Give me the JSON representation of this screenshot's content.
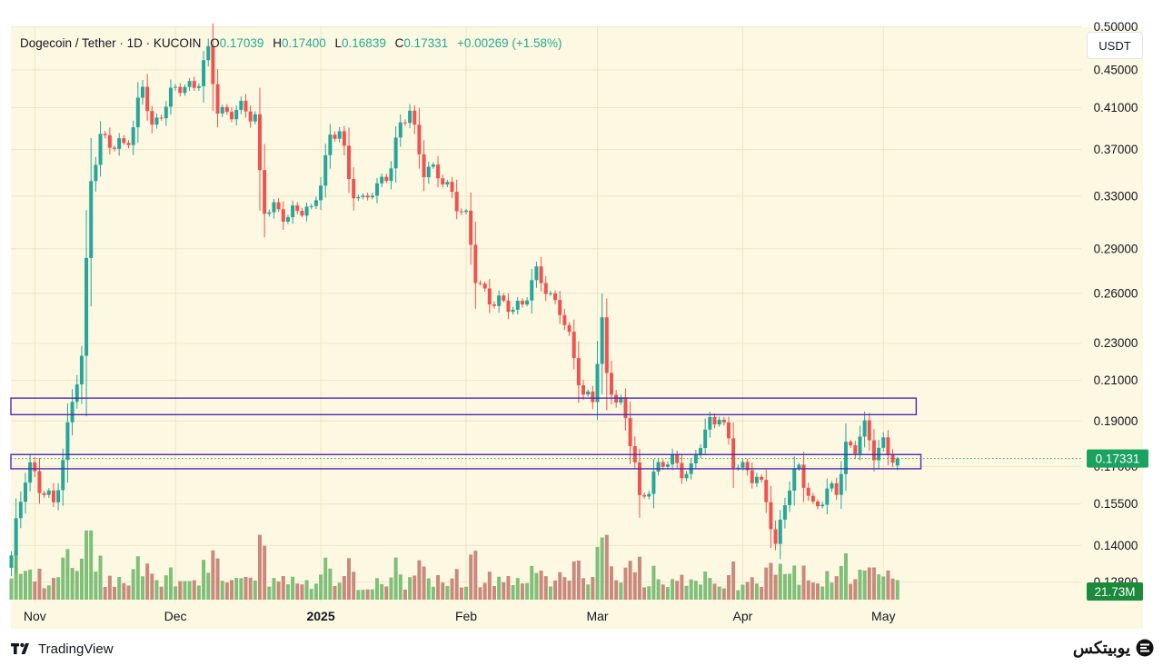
{
  "legend": {
    "symbol": "Dogecoin / Tether · 1D · KUCOIN",
    "open_label": "O",
    "open": "0.17039",
    "high_label": "H",
    "high": "0.17400",
    "low_label": "L",
    "low": "0.16839",
    "close_label": "C",
    "close": "0.17331",
    "change": "+0.00269 (+1.58%)"
  },
  "currency_button": "USDT",
  "footer": {
    "brand": "TradingView",
    "watermark": "یوبیتکس"
  },
  "colors": {
    "background": "#fdf8e1",
    "up": "#26a69a",
    "down": "#ef5350",
    "volume_up": "#7fbf7a",
    "volume_down": "#c98a7e",
    "zone": "#4b2bb8",
    "last_price_label": "#1aa260",
    "volume_label": "#1b8a3a"
  },
  "chart_data": {
    "type": "candlestick",
    "title": "Dogecoin / Tether · 1D · KUCOIN",
    "y_scale": "log",
    "ylim": [
      0.127,
      0.52
    ],
    "y_ticks": [
      "0.50000",
      "0.45000",
      "0.41000",
      "0.37000",
      "0.33000",
      "0.29000",
      "0.26000",
      "0.23000",
      "0.21000",
      "0.19000",
      "0.17000",
      "0.15500",
      "0.14000",
      "0.12800"
    ],
    "x_ticks": [
      {
        "label": "Nov",
        "date": "2024-11-01"
      },
      {
        "label": "Dec",
        "date": "2024-12-01"
      },
      {
        "label": "2025",
        "date": "2025-01-01"
      },
      {
        "label": "Feb",
        "date": "2025-02-01"
      },
      {
        "label": "Mar",
        "date": "2025-03-01"
      },
      {
        "label": "Apr",
        "date": "2025-04-01"
      },
      {
        "label": "May",
        "date": "2025-05-01"
      }
    ],
    "first_date": "2024-10-27",
    "close_keypoints": [
      [
        "2024-10-27",
        0.135
      ],
      [
        "2024-10-30",
        0.168
      ],
      [
        "2024-10-31",
        0.172
      ],
      [
        "2024-11-02",
        0.16
      ],
      [
        "2024-11-05",
        0.155
      ],
      [
        "2024-11-07",
        0.175
      ],
      [
        "2024-11-09",
        0.198
      ],
      [
        "2024-11-11",
        0.22
      ],
      [
        "2024-11-12",
        0.28
      ],
      [
        "2024-11-13",
        0.35
      ],
      [
        "2024-11-15",
        0.38
      ],
      [
        "2024-11-18",
        0.37
      ],
      [
        "2024-11-22",
        0.39
      ],
      [
        "2024-11-24",
        0.43
      ],
      [
        "2024-11-26",
        0.39
      ],
      [
        "2024-11-28",
        0.41
      ],
      [
        "2024-12-02",
        0.43
      ],
      [
        "2024-12-06",
        0.44
      ],
      [
        "2024-12-08",
        0.465
      ],
      [
        "2024-12-10",
        0.41
      ],
      [
        "2024-12-14",
        0.405
      ],
      [
        "2024-12-18",
        0.405
      ],
      [
        "2024-12-19",
        0.35
      ],
      [
        "2024-12-20",
        0.32
      ],
      [
        "2024-12-23",
        0.315
      ],
      [
        "2024-12-26",
        0.32
      ],
      [
        "2024-12-30",
        0.315
      ],
      [
        "2025-01-03",
        0.38
      ],
      [
        "2025-01-05",
        0.385
      ],
      [
        "2025-01-07",
        0.345
      ],
      [
        "2025-01-10",
        0.325
      ],
      [
        "2025-01-13",
        0.335
      ],
      [
        "2025-01-16",
        0.36
      ],
      [
        "2025-01-18",
        0.39
      ],
      [
        "2025-01-20",
        0.405
      ],
      [
        "2025-01-23",
        0.355
      ],
      [
        "2025-01-26",
        0.345
      ],
      [
        "2025-01-29",
        0.335
      ],
      [
        "2025-02-01",
        0.31
      ],
      [
        "2025-02-03",
        0.27
      ],
      [
        "2025-02-06",
        0.258
      ],
      [
        "2025-02-09",
        0.25
      ],
      [
        "2025-02-13",
        0.255
      ],
      [
        "2025-02-16",
        0.27
      ],
      [
        "2025-02-18",
        0.265
      ],
      [
        "2025-02-21",
        0.25
      ],
      [
        "2025-02-24",
        0.22
      ],
      [
        "2025-02-26",
        0.205
      ],
      [
        "2025-02-28",
        0.2
      ],
      [
        "2025-03-02",
        0.24
      ],
      [
        "2025-03-03",
        0.21
      ],
      [
        "2025-03-06",
        0.2
      ],
      [
        "2025-03-09",
        0.17
      ],
      [
        "2025-03-10",
        0.155
      ],
      [
        "2025-03-13",
        0.168
      ],
      [
        "2025-03-17",
        0.172
      ],
      [
        "2025-03-21",
        0.168
      ],
      [
        "2025-03-25",
        0.19
      ],
      [
        "2025-03-27",
        0.195
      ],
      [
        "2025-03-30",
        0.17
      ],
      [
        "2025-04-02",
        0.17
      ],
      [
        "2025-04-04",
        0.165
      ],
      [
        "2025-04-06",
        0.155
      ],
      [
        "2025-04-08",
        0.14
      ],
      [
        "2025-04-10",
        0.158
      ],
      [
        "2025-04-13",
        0.168
      ],
      [
        "2025-04-16",
        0.155
      ],
      [
        "2025-04-19",
        0.158
      ],
      [
        "2025-04-21",
        0.16
      ],
      [
        "2025-04-23",
        0.18
      ],
      [
        "2025-04-25",
        0.178
      ],
      [
        "2025-04-27",
        0.185
      ],
      [
        "2025-04-29",
        0.177
      ],
      [
        "2025-05-01",
        0.181
      ],
      [
        "2025-05-03",
        0.172
      ],
      [
        "2025-05-04",
        0.17331
      ]
    ],
    "volume_axis_label": "21.73M",
    "last_price_label": "0.17331",
    "zones": [
      {
        "from_date": "2024-10-27",
        "to_date": "2025-05-08",
        "low": 0.193,
        "high": 0.201
      },
      {
        "from_date": "2024-10-27",
        "to_date": "2025-05-09",
        "low": 0.169,
        "high": 0.175
      }
    ]
  }
}
